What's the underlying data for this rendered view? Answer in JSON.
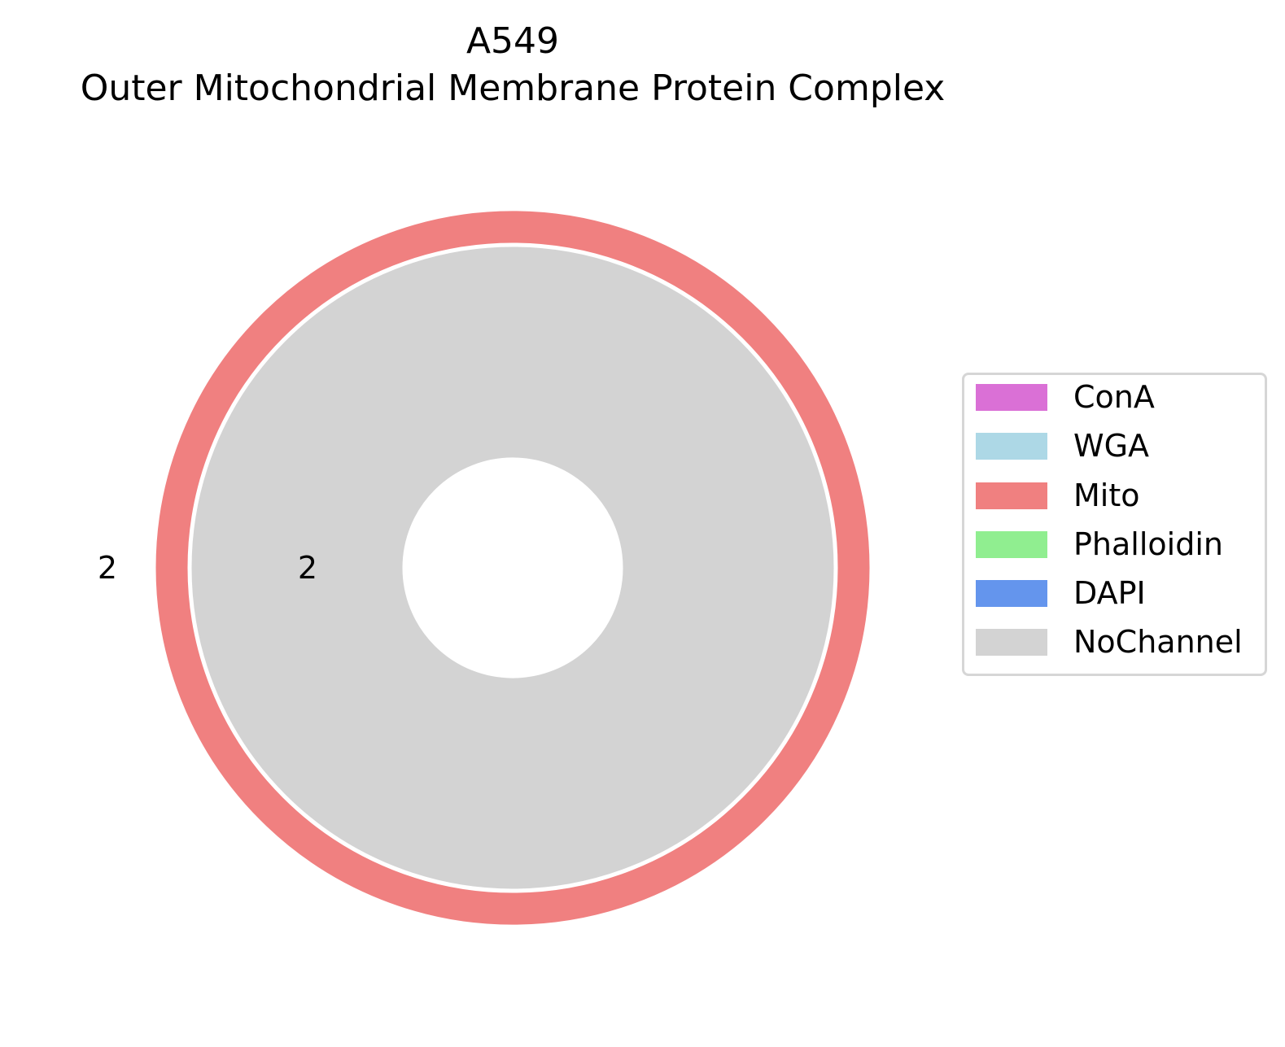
{
  "title": {
    "line1": "A549",
    "line2": "Outer Mitochondrial Membrane Protein Complex"
  },
  "chart_data": {
    "type": "pie",
    "subtype": "nested-donut",
    "rings": [
      {
        "ring": "outer",
        "slices": [
          {
            "category": "Mito",
            "value": 2,
            "label": "2",
            "color": "#f08080"
          }
        ]
      },
      {
        "ring": "inner",
        "slices": [
          {
            "category": "NoChannel",
            "value": 2,
            "label": "2",
            "color": "#d3d3d3"
          }
        ]
      }
    ],
    "legend": {
      "placement": "right",
      "entries": [
        {
          "label": "ConA",
          "color": "#da70d6"
        },
        {
          "label": "WGA",
          "color": "#add8e6"
        },
        {
          "label": "Mito",
          "color": "#f08080"
        },
        {
          "label": "Phalloidin",
          "color": "#90ee90"
        },
        {
          "label": "DAPI",
          "color": "#6495ed"
        },
        {
          "label": "NoChannel",
          "color": "#d3d3d3"
        }
      ]
    }
  }
}
